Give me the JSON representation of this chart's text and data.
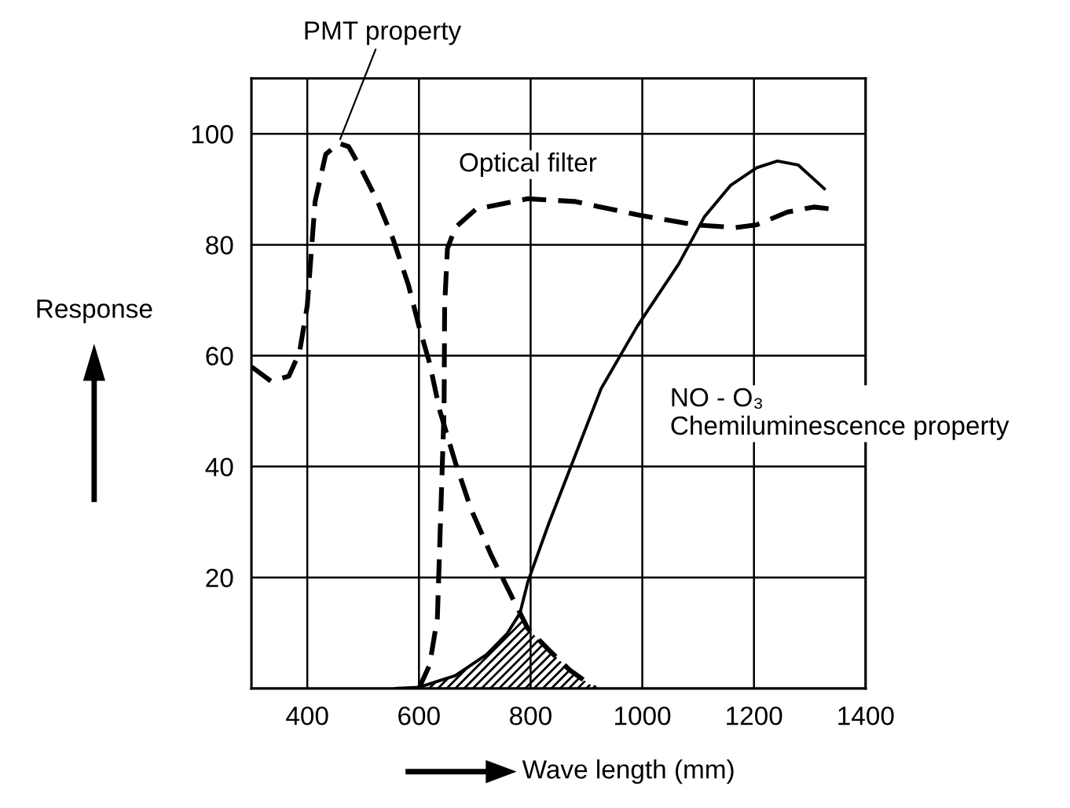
{
  "chart_data": {
    "type": "line",
    "xlabel": "Wave length (mm)",
    "ylabel": "Response",
    "xlim": [
      300,
      1400
    ],
    "xticks": [
      400,
      600,
      800,
      1000,
      1200,
      1400
    ],
    "ylim": [
      0,
      110
    ],
    "yticks": [
      20,
      40,
      60,
      80,
      100
    ],
    "grid": true,
    "legend": false,
    "marker": "none",
    "series": [
      {
        "name": "PMT property",
        "color": "#000000",
        "line_style": "dashed",
        "x": [
          300,
          335,
          367,
          386,
          400,
          414,
          433,
          456,
          474,
          498,
          526,
          553,
          581,
          600,
          619,
          637,
          665,
          693,
          730,
          767,
          795,
          832,
          870,
          916
        ],
        "values": [
          58,
          55.4,
          56.3,
          60.6,
          69,
          87.8,
          96.3,
          98.3,
          97.7,
          93.4,
          87.8,
          81.2,
          72.8,
          65.3,
          58.7,
          50.2,
          40.8,
          32.4,
          23.9,
          16.4,
          10.8,
          7,
          3.3,
          0
        ]
      },
      {
        "name": "Optical filter",
        "color": "#000000",
        "line_style": "dashed",
        "x": [
          600,
          619,
          633,
          642,
          645,
          646,
          651,
          665,
          702,
          795,
          879,
          991,
          1093,
          1167,
          1205,
          1260,
          1307,
          1344
        ],
        "values": [
          0,
          4.2,
          12.7,
          40.8,
          50.2,
          69,
          79.3,
          83.1,
          86.4,
          88.3,
          87.8,
          85.4,
          83.6,
          83.1,
          83.6,
          85.9,
          86.8,
          86.4
        ]
      },
      {
        "name": "NO - O₃\nChemiluminescence property",
        "color": "#000000",
        "line_style": "solid",
        "x": [
          558,
          600,
          665,
          721,
          758,
          781,
          795,
          832,
          879,
          926,
          991,
          1065,
          1111,
          1158,
          1205,
          1242,
          1279,
          1326
        ],
        "values": [
          0,
          0.2,
          2.3,
          6.1,
          9.9,
          13.6,
          19.2,
          29.6,
          41.8,
          54,
          65.3,
          76.5,
          85,
          90.7,
          93.9,
          95.1,
          94.4,
          90.1
        ]
      },
      {
        "type": "area",
        "color": "#000000",
        "x": [
          600,
          665,
          721,
          758,
          781,
          795,
          832,
          870,
          916
        ],
        "values": [
          0,
          2.3,
          6.1,
          9.9,
          13.6,
          10.8,
          7,
          3.3,
          0
        ]
      }
    ]
  }
}
